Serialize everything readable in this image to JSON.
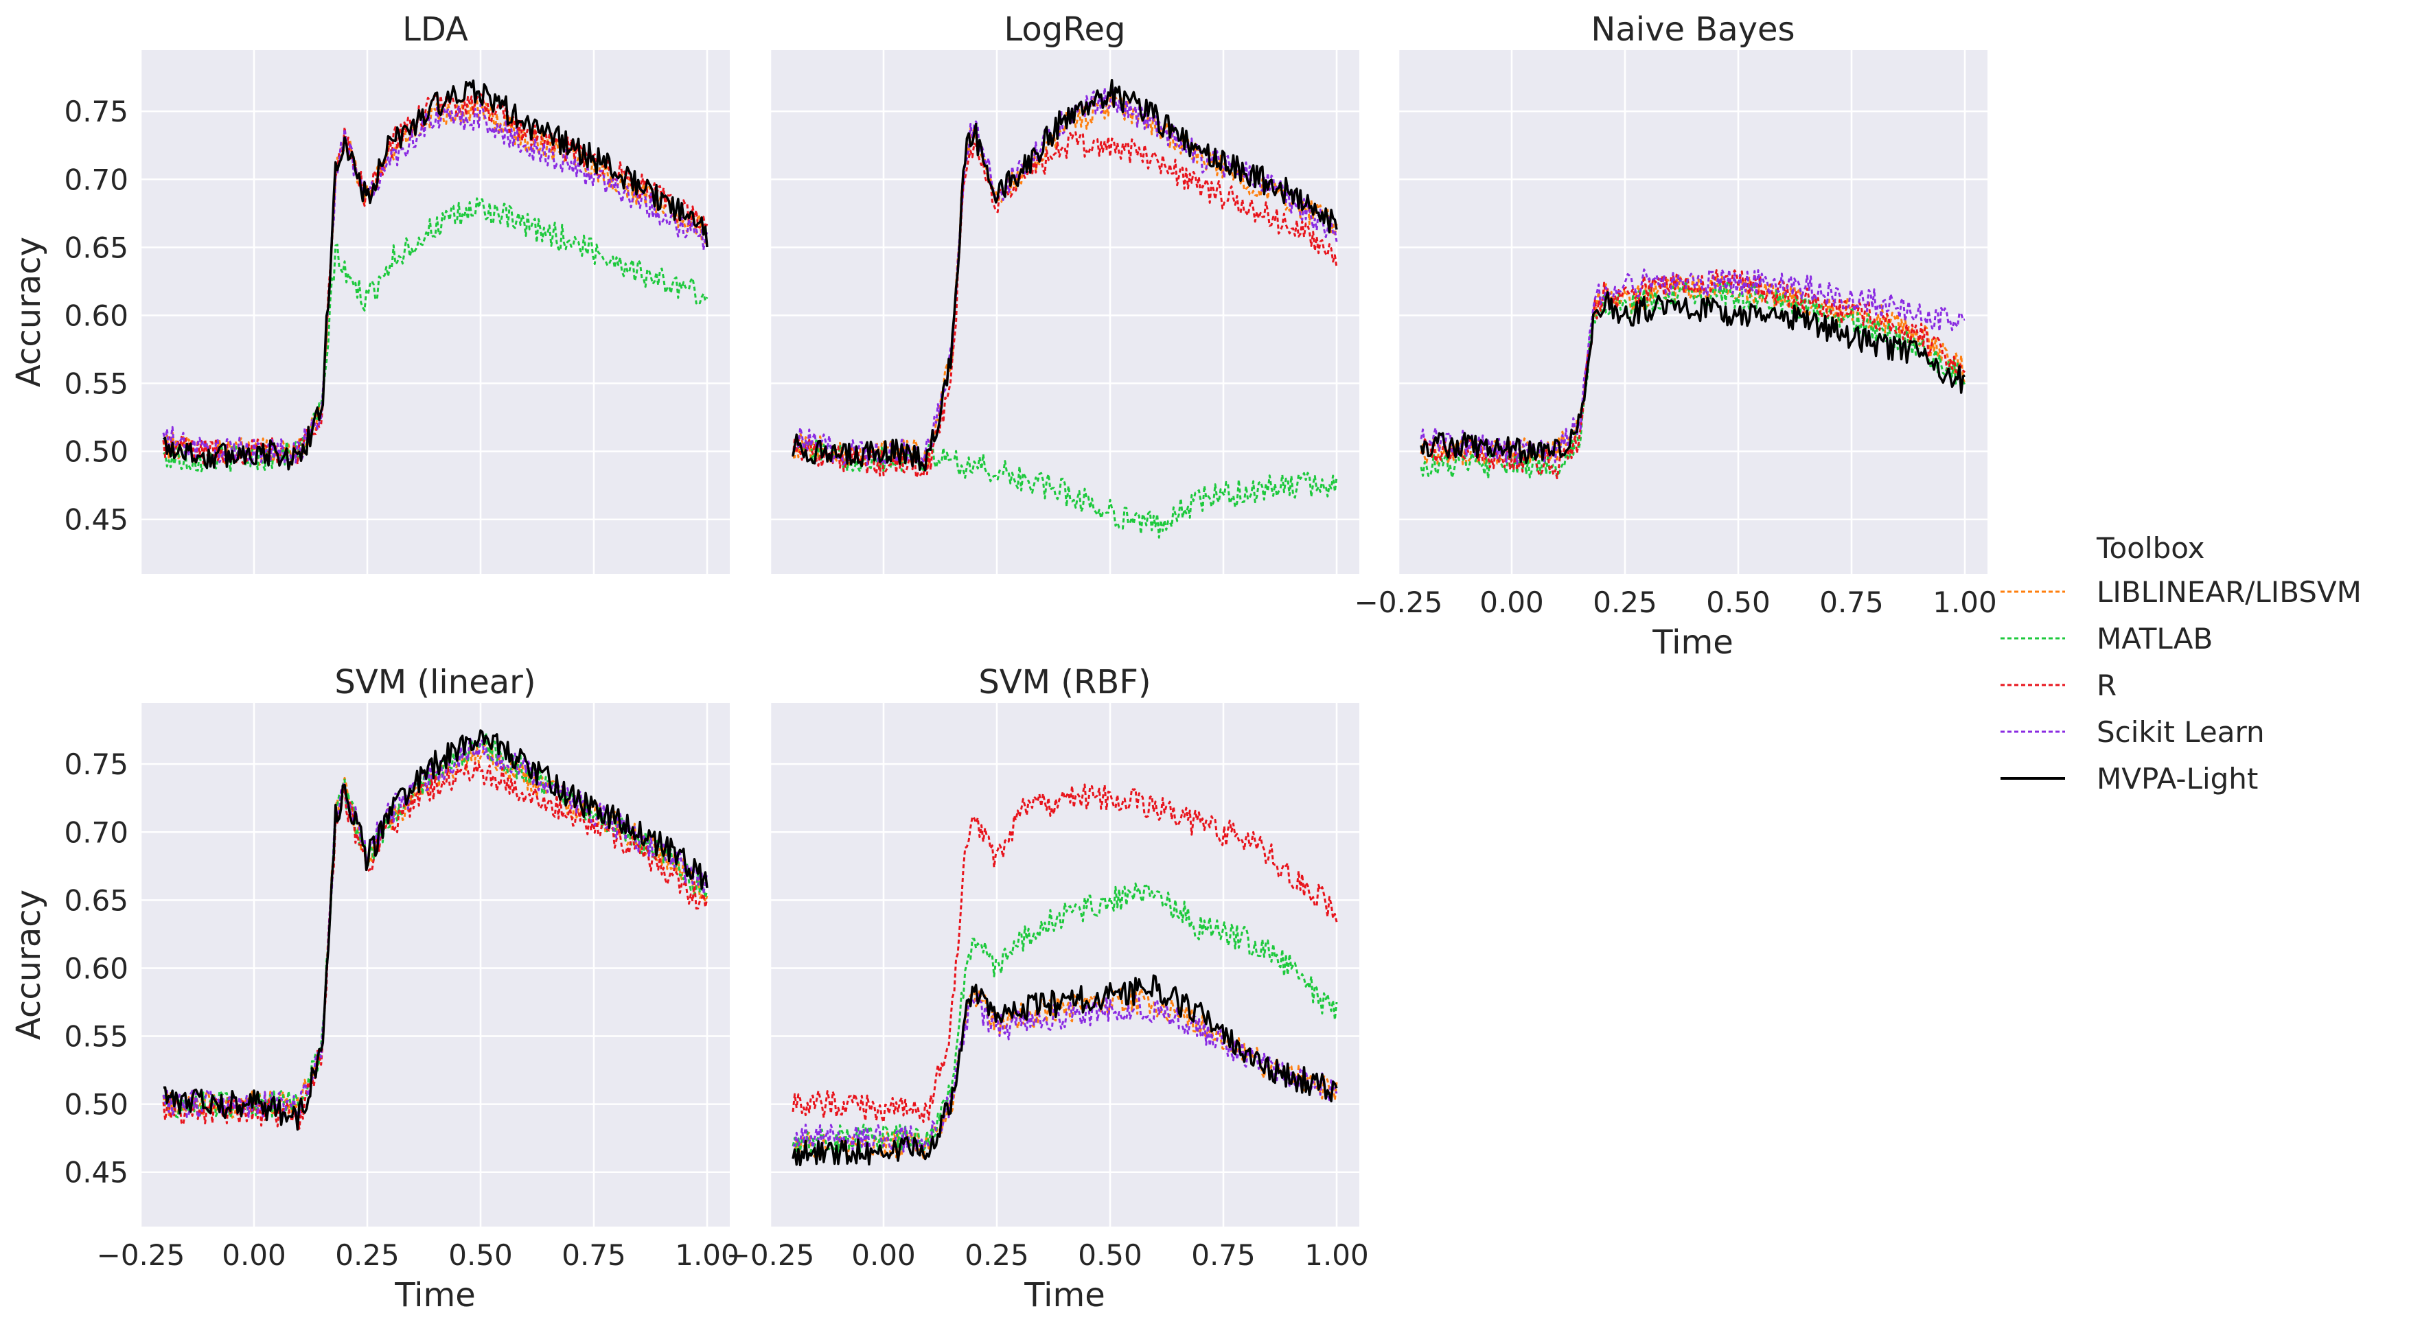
{
  "chart_data": {
    "type": "line",
    "layout": "2x3 faceted grid",
    "x_label": "Time",
    "y_label": "Accuracy",
    "xlim": [
      -0.25,
      1.05
    ],
    "ylim": [
      0.41,
      0.795
    ],
    "x_ticks": [
      "−0.25",
      "0.00",
      "0.25",
      "0.50",
      "0.75",
      "1.00"
    ],
    "x_tick_values": [
      -0.25,
      0.0,
      0.25,
      0.5,
      0.75,
      1.0
    ],
    "y_ticks": [
      "0.45",
      "0.50",
      "0.55",
      "0.60",
      "0.65",
      "0.70",
      "0.75"
    ],
    "y_tick_values": [
      0.45,
      0.5,
      0.55,
      0.6,
      0.65,
      0.7,
      0.75
    ],
    "legend": {
      "title": "Toolbox",
      "placement": "right",
      "entries": [
        {
          "key": "liblinear",
          "label": "LIBLINEAR/LIBSVM",
          "color": "#ff7f0e",
          "dashed": true
        },
        {
          "key": "matlab",
          "label": "MATLAB",
          "color": "#1dc93c",
          "dashed": true
        },
        {
          "key": "r",
          "label": "R",
          "color": "#e8141c",
          "dashed": true
        },
        {
          "key": "sklearn",
          "label": "Scikit Learn",
          "color": "#8a2be2",
          "dashed": true
        },
        {
          "key": "mvpa",
          "label": "MVPA-Light",
          "color": "#000000",
          "dashed": false
        }
      ]
    },
    "panels": [
      {
        "id": "lda",
        "title": "LDA",
        "x": [
          -0.2,
          -0.1,
          0.0,
          0.1,
          0.15,
          0.18,
          0.2,
          0.25,
          0.3,
          0.4,
          0.5,
          0.6,
          0.7,
          0.8,
          0.9,
          1.0
        ],
        "series": {
          "liblinear": [
            0.505,
            0.5,
            0.5,
            0.5,
            0.53,
            0.7,
            0.73,
            0.685,
            0.72,
            0.75,
            0.75,
            0.73,
            0.72,
            0.7,
            0.68,
            0.66
          ],
          "matlab": [
            0.495,
            0.495,
            0.495,
            0.5,
            0.53,
            0.65,
            0.63,
            0.61,
            0.64,
            0.665,
            0.68,
            0.665,
            0.655,
            0.64,
            0.625,
            0.615
          ],
          "r": [
            0.505,
            0.5,
            0.5,
            0.5,
            0.53,
            0.7,
            0.73,
            0.685,
            0.725,
            0.755,
            0.755,
            0.735,
            0.72,
            0.705,
            0.685,
            0.665
          ],
          "sklearn": [
            0.51,
            0.5,
            0.5,
            0.5,
            0.53,
            0.7,
            0.73,
            0.685,
            0.715,
            0.745,
            0.745,
            0.725,
            0.71,
            0.695,
            0.675,
            0.655
          ],
          "mvpa": [
            0.505,
            0.495,
            0.5,
            0.495,
            0.53,
            0.71,
            0.725,
            0.685,
            0.725,
            0.755,
            0.765,
            0.74,
            0.725,
            0.705,
            0.685,
            0.66
          ]
        }
      },
      {
        "id": "logreg",
        "title": "LogReg",
        "x": [
          -0.2,
          -0.1,
          0.0,
          0.1,
          0.15,
          0.18,
          0.2,
          0.25,
          0.3,
          0.4,
          0.5,
          0.6,
          0.7,
          0.8,
          0.9,
          1.0
        ],
        "series": {
          "liblinear": [
            0.505,
            0.5,
            0.5,
            0.5,
            0.57,
            0.72,
            0.735,
            0.69,
            0.7,
            0.74,
            0.755,
            0.74,
            0.715,
            0.7,
            0.685,
            0.665
          ],
          "matlab": [
            0.505,
            0.495,
            0.495,
            0.495,
            0.495,
            0.49,
            0.49,
            0.485,
            0.48,
            0.47,
            0.455,
            0.445,
            0.465,
            0.47,
            0.475,
            0.475
          ],
          "r": [
            0.505,
            0.495,
            0.49,
            0.49,
            0.55,
            0.71,
            0.725,
            0.68,
            0.7,
            0.725,
            0.725,
            0.715,
            0.695,
            0.68,
            0.665,
            0.645
          ],
          "sklearn": [
            0.51,
            0.5,
            0.5,
            0.5,
            0.57,
            0.72,
            0.74,
            0.69,
            0.705,
            0.745,
            0.76,
            0.74,
            0.715,
            0.705,
            0.685,
            0.66
          ],
          "mvpa": [
            0.505,
            0.495,
            0.5,
            0.495,
            0.57,
            0.72,
            0.735,
            0.69,
            0.705,
            0.745,
            0.765,
            0.745,
            0.72,
            0.705,
            0.69,
            0.665
          ]
        }
      },
      {
        "id": "naivebayes",
        "title": "Naive Bayes",
        "x": [
          -0.2,
          -0.1,
          0.0,
          0.1,
          0.15,
          0.18,
          0.2,
          0.25,
          0.3,
          0.4,
          0.5,
          0.6,
          0.7,
          0.8,
          0.9,
          1.0
        ],
        "series": {
          "liblinear": [
            0.5,
            0.5,
            0.5,
            0.5,
            0.52,
            0.6,
            0.615,
            0.61,
            0.615,
            0.62,
            0.62,
            0.615,
            0.605,
            0.6,
            0.585,
            0.56
          ],
          "matlab": [
            0.49,
            0.49,
            0.49,
            0.49,
            0.51,
            0.6,
            0.61,
            0.605,
            0.61,
            0.615,
            0.615,
            0.61,
            0.6,
            0.59,
            0.575,
            0.555
          ],
          "r": [
            0.5,
            0.5,
            0.495,
            0.49,
            0.51,
            0.6,
            0.615,
            0.615,
            0.62,
            0.625,
            0.625,
            0.615,
            0.605,
            0.6,
            0.585,
            0.56
          ],
          "sklearn": [
            0.51,
            0.505,
            0.5,
            0.5,
            0.52,
            0.605,
            0.62,
            0.62,
            0.625,
            0.625,
            0.625,
            0.625,
            0.615,
            0.61,
            0.6,
            0.595
          ],
          "mvpa": [
            0.505,
            0.505,
            0.5,
            0.5,
            0.52,
            0.6,
            0.61,
            0.6,
            0.605,
            0.605,
            0.6,
            0.6,
            0.59,
            0.58,
            0.57,
            0.55
          ]
        }
      },
      {
        "id": "svmlinear",
        "title": "SVM (linear)",
        "x": [
          -0.2,
          -0.1,
          0.0,
          0.1,
          0.15,
          0.18,
          0.2,
          0.25,
          0.3,
          0.4,
          0.5,
          0.6,
          0.7,
          0.8,
          0.9,
          1.0
        ],
        "series": {
          "liblinear": [
            0.5,
            0.5,
            0.5,
            0.5,
            0.54,
            0.71,
            0.73,
            0.68,
            0.71,
            0.74,
            0.76,
            0.74,
            0.72,
            0.705,
            0.685,
            0.655
          ],
          "matlab": [
            0.5,
            0.5,
            0.5,
            0.5,
            0.54,
            0.71,
            0.73,
            0.68,
            0.71,
            0.745,
            0.765,
            0.745,
            0.725,
            0.705,
            0.685,
            0.655
          ],
          "r": [
            0.495,
            0.495,
            0.495,
            0.49,
            0.54,
            0.7,
            0.725,
            0.675,
            0.705,
            0.735,
            0.745,
            0.73,
            0.715,
            0.695,
            0.675,
            0.645
          ],
          "sklearn": [
            0.5,
            0.5,
            0.5,
            0.5,
            0.54,
            0.71,
            0.73,
            0.685,
            0.715,
            0.745,
            0.765,
            0.745,
            0.725,
            0.705,
            0.685,
            0.66
          ],
          "mvpa": [
            0.505,
            0.5,
            0.5,
            0.49,
            0.54,
            0.71,
            0.73,
            0.68,
            0.715,
            0.75,
            0.77,
            0.75,
            0.725,
            0.71,
            0.69,
            0.665
          ]
        }
      },
      {
        "id": "svmrbf",
        "title": "SVM (RBF)",
        "x": [
          -0.2,
          -0.1,
          0.0,
          0.1,
          0.15,
          0.18,
          0.2,
          0.25,
          0.3,
          0.4,
          0.5,
          0.6,
          0.7,
          0.8,
          0.9,
          1.0
        ],
        "series": {
          "liblinear": [
            0.47,
            0.47,
            0.47,
            0.47,
            0.5,
            0.56,
            0.58,
            0.56,
            0.565,
            0.57,
            0.575,
            0.575,
            0.56,
            0.535,
            0.52,
            0.51
          ],
          "matlab": [
            0.475,
            0.475,
            0.475,
            0.475,
            0.51,
            0.6,
            0.62,
            0.6,
            0.62,
            0.64,
            0.65,
            0.655,
            0.63,
            0.62,
            0.6,
            0.565
          ],
          "r": [
            0.5,
            0.5,
            0.495,
            0.495,
            0.56,
            0.69,
            0.71,
            0.68,
            0.715,
            0.725,
            0.725,
            0.72,
            0.705,
            0.695,
            0.67,
            0.64
          ],
          "sklearn": [
            0.475,
            0.475,
            0.475,
            0.475,
            0.5,
            0.56,
            0.575,
            0.555,
            0.56,
            0.565,
            0.57,
            0.57,
            0.555,
            0.535,
            0.52,
            0.51
          ],
          "mvpa": [
            0.465,
            0.465,
            0.465,
            0.47,
            0.5,
            0.565,
            0.585,
            0.56,
            0.57,
            0.575,
            0.58,
            0.585,
            0.565,
            0.535,
            0.52,
            0.51
          ]
        }
      }
    ]
  }
}
